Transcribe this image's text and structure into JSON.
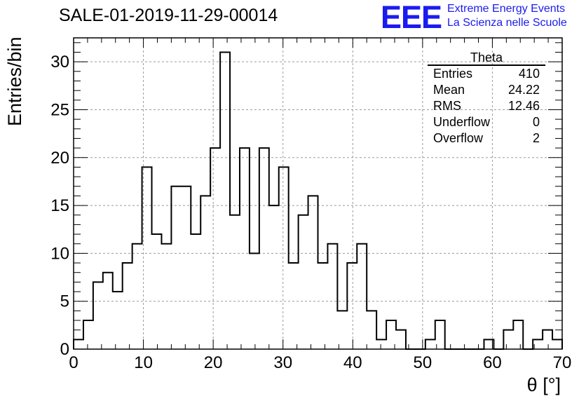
{
  "title": "SALE-01-2019-11-29-00014",
  "logo": {
    "mark": "EEE",
    "line1": "Extreme Energy Events",
    "line2": "La Scienza nelle Scuole",
    "color": "#1b1bf0"
  },
  "stats_box": {
    "title": "Theta",
    "rows": [
      {
        "label": "Entries",
        "value": "410"
      },
      {
        "label": "Mean",
        "value": "24.22"
      },
      {
        "label": "RMS",
        "value": "12.46"
      },
      {
        "label": "Underflow",
        "value": "0"
      },
      {
        "label": "Overflow",
        "value": "2"
      }
    ]
  },
  "chart_data": {
    "type": "bar",
    "style": "step-histogram",
    "title": "SALE-01-2019-11-29-00014",
    "xlabel": "θ [°]",
    "ylabel": "Entries/bin",
    "xlim": [
      0,
      70
    ],
    "ylim": [
      0,
      32.5
    ],
    "bin_width": 1.4,
    "x_ticks": [
      0,
      10,
      20,
      30,
      40,
      50,
      60,
      70
    ],
    "y_ticks": [
      0,
      5,
      10,
      15,
      20,
      25,
      30
    ],
    "grid": true,
    "values": [
      1,
      3,
      7,
      8,
      6,
      9,
      11,
      19,
      12,
      11,
      17,
      17,
      12,
      16,
      21,
      31,
      14,
      21,
      10,
      21,
      15,
      19,
      9,
      14,
      16,
      9,
      11,
      4,
      9,
      11,
      4,
      1,
      3,
      2,
      0,
      0,
      1,
      3,
      0,
      0,
      0,
      0,
      1,
      0,
      2,
      3,
      0,
      1,
      2,
      1
    ]
  }
}
